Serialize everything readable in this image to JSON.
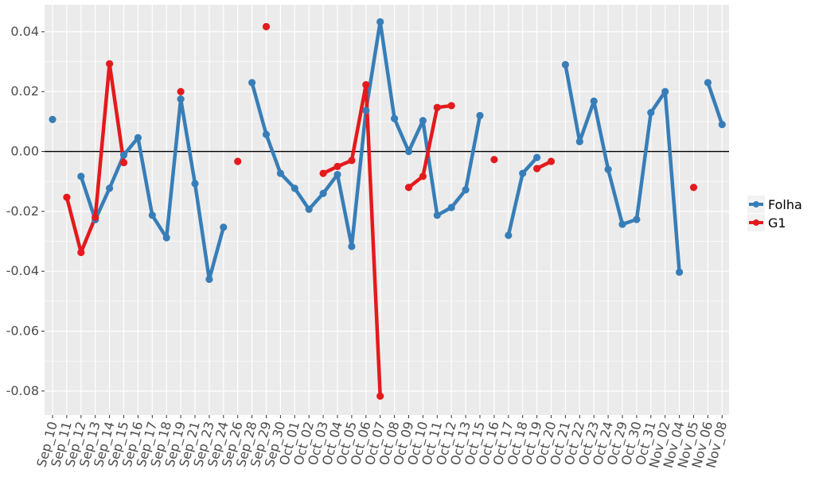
{
  "chart_data": {
    "type": "line",
    "x": [
      "Sep_10",
      "Sep_11",
      "Sep_12",
      "Sep_13",
      "Sep_14",
      "Sep_15",
      "Sep_16",
      "Sep_17",
      "Sep_18",
      "Sep_19",
      "Sep_21",
      "Sep_23",
      "Sep_24",
      "Sep_26",
      "Sep_28",
      "Sep_29",
      "Sep_30",
      "Oct_01",
      "Oct_02",
      "Oct_03",
      "Oct_04",
      "Oct_05",
      "Oct_06",
      "Oct_07",
      "Oct_08",
      "Oct_09",
      "Oct_10",
      "Oct_11",
      "Oct_12",
      "Oct_13",
      "Oct_15",
      "Oct_16",
      "Oct_17",
      "Oct_18",
      "Oct_19",
      "Oct_20",
      "Oct_21",
      "Oct_22",
      "Oct_23",
      "Oct_24",
      "Oct_29",
      "Oct_30",
      "Oct_31",
      "Nov_02",
      "Nov_04",
      "Nov_05",
      "Nov_06",
      "Nov_08"
    ],
    "series": [
      {
        "name": "Folha",
        "color": "#377eb8",
        "values": [
          0.0107,
          null,
          -0.0083,
          -0.0228,
          -0.0123,
          -0.0012,
          0.0046,
          -0.0213,
          -0.0288,
          0.0175,
          -0.0107,
          -0.0427,
          -0.0253,
          null,
          0.023,
          0.0057,
          -0.0073,
          -0.0123,
          -0.0193,
          -0.014,
          -0.0077,
          -0.0317,
          0.0137,
          0.0433,
          0.011,
          0.0,
          0.0103,
          -0.0213,
          -0.0187,
          -0.0128,
          0.012,
          null,
          -0.028,
          -0.0073,
          -0.002,
          null,
          0.029,
          0.0033,
          0.0168,
          -0.006,
          -0.0243,
          -0.0227,
          0.013,
          0.02,
          -0.0403,
          null,
          0.023,
          0.009
        ]
      },
      {
        "name": "G1",
        "color": "#e41a1c",
        "values": [
          null,
          -0.0153,
          -0.0337,
          -0.022,
          0.0293,
          -0.0037,
          null,
          null,
          null,
          0.02,
          null,
          null,
          null,
          -0.0033,
          null,
          0.0417,
          null,
          null,
          null,
          -0.0073,
          -0.005,
          -0.003,
          0.0223,
          -0.0817,
          null,
          -0.012,
          -0.0083,
          0.0147,
          0.0153,
          null,
          null,
          -0.0027,
          null,
          null,
          -0.0057,
          -0.0033,
          null,
          null,
          null,
          null,
          null,
          null,
          null,
          null,
          null,
          -0.012,
          null,
          null
        ]
      }
    ],
    "yticks": [
      "0.04",
      "0.02",
      "0.00",
      "-0.02",
      "-0.04",
      "-0.06",
      "-0.08"
    ],
    "ylim": [
      -0.088,
      0.049
    ],
    "grid": true,
    "hline_y": 0,
    "legend_position": "right",
    "colors": {
      "panel_background": "#ebebeb",
      "grid": "#ffffff",
      "tick_text": "#4d4d4d"
    }
  }
}
